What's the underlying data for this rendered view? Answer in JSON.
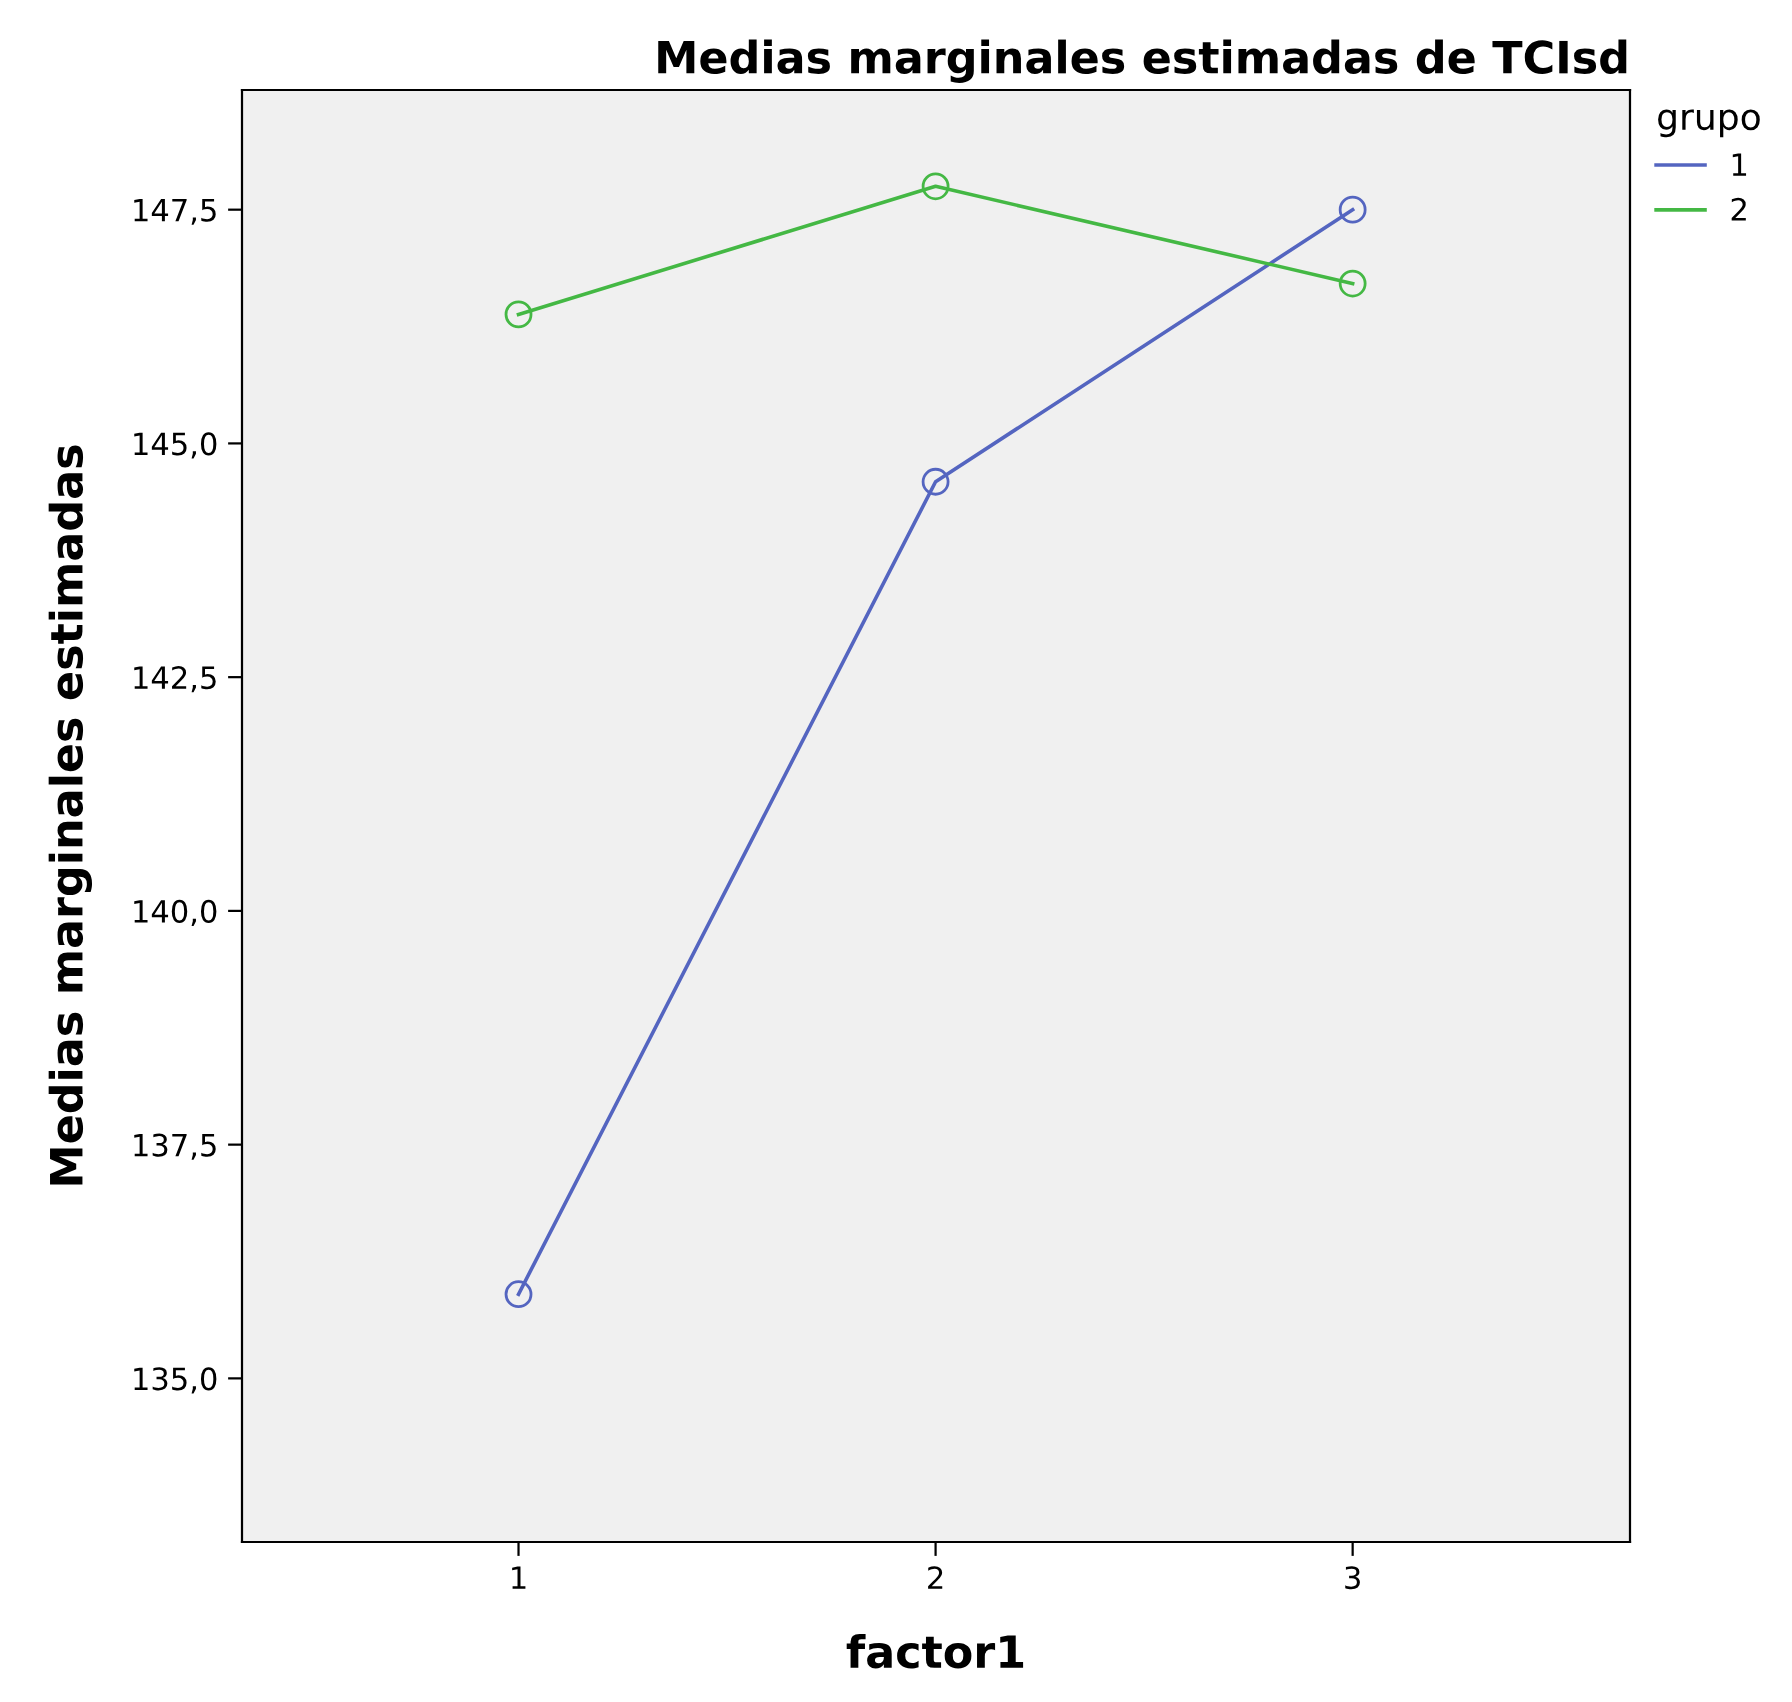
{
  "chart_data": {
    "type": "line",
    "title": "Medias marginales estimadas de TCIsd",
    "xlabel": "factor1",
    "ylabel": "Medias marginales estimadas",
    "legend_title": "grupo",
    "categories": [
      "1",
      "2",
      "3"
    ],
    "series": [
      {
        "name": "1",
        "color": "#5465c0",
        "values": [
          135.9,
          144.59,
          147.5
        ]
      },
      {
        "name": "2",
        "color": "#44b844",
        "values": [
          146.38,
          147.75,
          146.71
        ]
      }
    ],
    "ylim": [
      133.25,
      148.78
    ],
    "yticks": [
      {
        "value": 135,
        "label": "135,0"
      },
      {
        "value": 137.5,
        "label": "137,5"
      },
      {
        "value": 140,
        "label": "140,0"
      },
      {
        "value": 142.5,
        "label": "142,5"
      },
      {
        "value": 145,
        "label": "145,0"
      },
      {
        "value": 147.5,
        "label": "147,5"
      }
    ],
    "grid": false,
    "legend": "top right",
    "marker": "circle",
    "line_style": "solid"
  }
}
